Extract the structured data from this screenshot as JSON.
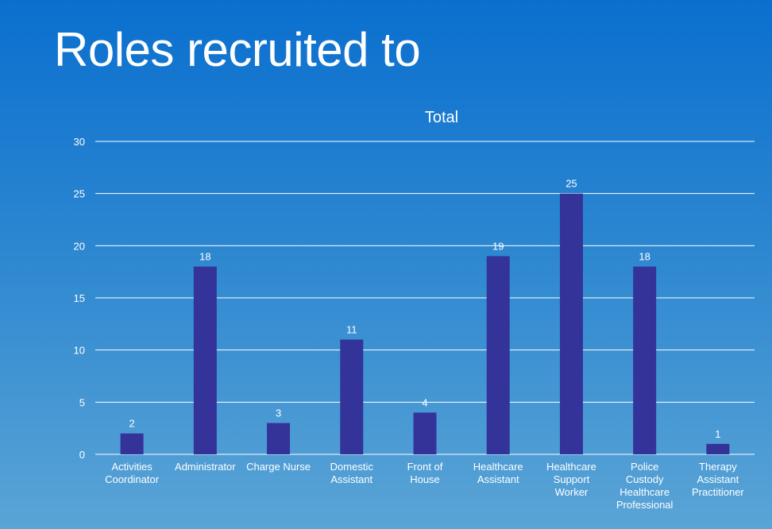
{
  "slide": {
    "title": "Roles recruited to"
  },
  "chart_data": {
    "type": "bar",
    "title": "Total",
    "categories": [
      [
        "Activities",
        "Coordinator"
      ],
      [
        "Administrator"
      ],
      [
        "Charge Nurse"
      ],
      [
        "Domestic",
        "Assistant"
      ],
      [
        "Front of",
        "House"
      ],
      [
        "Healthcare",
        "Assistant"
      ],
      [
        "Healthcare",
        "Support",
        "Worker"
      ],
      [
        "Police",
        "Custody",
        "Healthcare",
        "Professional"
      ],
      [
        "Therapy",
        "Assistant",
        "Practitioner"
      ]
    ],
    "values": [
      2,
      18,
      3,
      11,
      4,
      19,
      25,
      18,
      1
    ],
    "ylim": [
      0,
      30
    ],
    "yticks": [
      0,
      5,
      10,
      15,
      20,
      25,
      30
    ],
    "grid": true,
    "legend": "none",
    "bar_color": "#333399",
    "grid_color": "#ffffff"
  }
}
